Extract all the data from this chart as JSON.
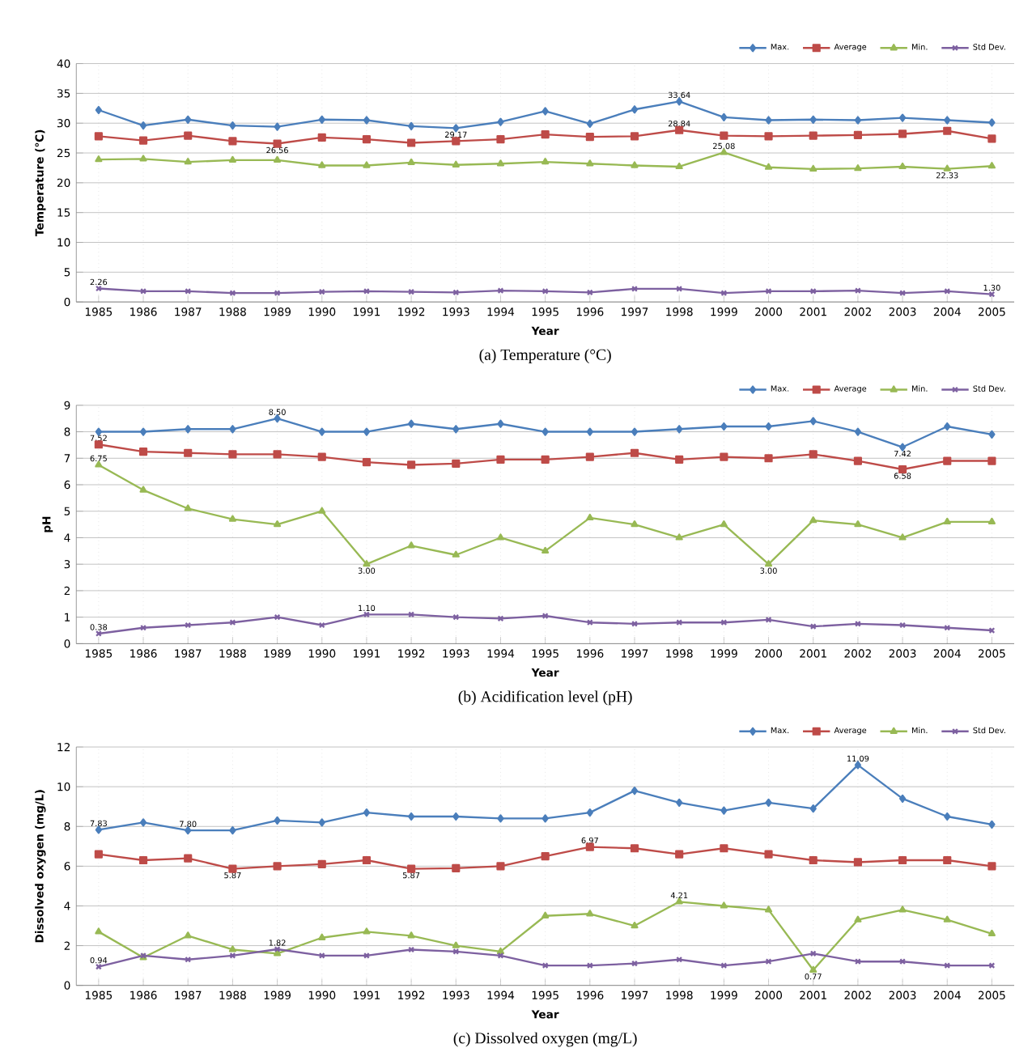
{
  "chart_data": [
    {
      "type": "line",
      "title": "(a)  Temperature  (°C)",
      "xlabel": "Year",
      "ylabel": "Temperature (℃)",
      "categories": [
        "1985",
        "1986",
        "1987",
        "1988",
        "1989",
        "1990",
        "1991",
        "1992",
        "1993",
        "1994",
        "1995",
        "1996",
        "1997",
        "1998",
        "1999",
        "2000",
        "2001",
        "2002",
        "2003",
        "2004",
        "2005"
      ],
      "ylim": [
        0,
        40
      ],
      "yticks": [
        0,
        5,
        10,
        15,
        20,
        25,
        30,
        35,
        40
      ],
      "grid": true,
      "legend": "top right",
      "line_style": "solid",
      "series": [
        {
          "name": "Max.",
          "color": "#4a7ebb",
          "marker": "diamond",
          "values": [
            32.2,
            29.6,
            30.6,
            29.6,
            29.4,
            30.6,
            30.5,
            29.5,
            29.17,
            30.2,
            32.0,
            29.9,
            32.3,
            33.64,
            31.0,
            30.5,
            30.6,
            30.5,
            30.9,
            30.5,
            30.1
          ],
          "value_labels": [
            null,
            null,
            null,
            null,
            null,
            null,
            null,
            null,
            "29.17",
            null,
            null,
            null,
            null,
            "33.64",
            null,
            null,
            null,
            null,
            null,
            null,
            null
          ]
        },
        {
          "name": "Average",
          "color": "#be4b48",
          "marker": "square",
          "values": [
            27.8,
            27.1,
            27.9,
            27.0,
            26.56,
            27.6,
            27.3,
            26.7,
            27.0,
            27.3,
            28.1,
            27.7,
            27.8,
            28.84,
            27.9,
            27.8,
            27.9,
            28.0,
            28.2,
            28.7,
            27.4
          ],
          "value_labels": [
            null,
            null,
            null,
            null,
            "26.56",
            null,
            null,
            null,
            null,
            null,
            null,
            null,
            null,
            "28.84",
            null,
            null,
            null,
            null,
            null,
            null,
            null
          ]
        },
        {
          "name": "Min.",
          "color": "#98b954",
          "marker": "triangle",
          "values": [
            23.9,
            24.0,
            23.5,
            23.8,
            23.8,
            22.9,
            22.9,
            23.4,
            23.0,
            23.2,
            23.5,
            23.2,
            22.9,
            22.7,
            25.08,
            22.6,
            22.3,
            22.4,
            22.7,
            22.33,
            22.8
          ],
          "value_labels": [
            null,
            null,
            null,
            null,
            null,
            null,
            null,
            null,
            null,
            null,
            null,
            null,
            null,
            null,
            "25.08",
            null,
            null,
            null,
            null,
            "22.33",
            null
          ]
        },
        {
          "name": "Std Dev.",
          "color": "#7d60a0",
          "marker": "cross",
          "values": [
            2.26,
            1.8,
            1.8,
            1.5,
            1.5,
            1.7,
            1.8,
            1.7,
            1.6,
            1.9,
            1.8,
            1.6,
            2.2,
            2.2,
            1.5,
            1.8,
            1.8,
            1.9,
            1.5,
            1.8,
            1.3
          ],
          "value_labels": [
            "2.26",
            null,
            null,
            null,
            null,
            null,
            null,
            null,
            null,
            null,
            null,
            null,
            null,
            null,
            null,
            null,
            null,
            null,
            null,
            null,
            "1.30"
          ]
        }
      ]
    },
    {
      "type": "line",
      "title": "(b)  Acidification  level  (pH)",
      "xlabel": "Year",
      "ylabel": "pH",
      "categories": [
        "1985",
        "1986",
        "1987",
        "1988",
        "1989",
        "1990",
        "1991",
        "1992",
        "1993",
        "1994",
        "1995",
        "1996",
        "1997",
        "1998",
        "1999",
        "2000",
        "2001",
        "2002",
        "2003",
        "2004",
        "2005"
      ],
      "ylim": [
        0,
        9
      ],
      "yticks": [
        0,
        1,
        2,
        3,
        4,
        5,
        6,
        7,
        8,
        9
      ],
      "grid": true,
      "legend": "top right",
      "line_style": "solid",
      "series": [
        {
          "name": "Max.",
          "color": "#4a7ebb",
          "marker": "diamond",
          "values": [
            8.0,
            8.0,
            8.1,
            8.1,
            8.5,
            8.0,
            8.0,
            8.3,
            8.1,
            8.3,
            8.0,
            8.0,
            8.0,
            8.1,
            8.2,
            8.2,
            8.4,
            8.0,
            7.42,
            8.2,
            7.9
          ],
          "value_labels": [
            null,
            null,
            null,
            null,
            "8.50",
            null,
            null,
            null,
            null,
            null,
            null,
            null,
            null,
            null,
            null,
            null,
            null,
            null,
            "7.42",
            null,
            null
          ]
        },
        {
          "name": "Average",
          "color": "#be4b48",
          "marker": "square",
          "values": [
            7.52,
            7.25,
            7.2,
            7.15,
            7.15,
            7.05,
            6.85,
            6.75,
            6.8,
            6.95,
            6.95,
            7.05,
            7.2,
            6.95,
            7.05,
            7.0,
            7.15,
            6.9,
            6.58,
            6.9,
            6.9
          ],
          "value_labels": [
            "7.52",
            null,
            null,
            null,
            null,
            null,
            null,
            null,
            null,
            null,
            null,
            null,
            null,
            null,
            null,
            null,
            null,
            null,
            "6.58",
            null,
            null
          ]
        },
        {
          "name": "Min.",
          "color": "#98b954",
          "marker": "triangle",
          "values": [
            6.75,
            5.8,
            5.1,
            4.7,
            4.5,
            5.0,
            3.0,
            3.7,
            3.35,
            4.0,
            3.5,
            4.75,
            4.5,
            4.0,
            4.5,
            3.0,
            4.65,
            4.5,
            4.0,
            4.6,
            4.6
          ],
          "value_labels": [
            "6.75",
            null,
            null,
            null,
            null,
            null,
            "3.00",
            null,
            null,
            null,
            null,
            null,
            null,
            null,
            null,
            "3.00",
            null,
            null,
            null,
            null,
            null
          ]
        },
        {
          "name": "Std Dev.",
          "color": "#7d60a0",
          "marker": "cross",
          "values": [
            0.38,
            0.6,
            0.7,
            0.8,
            1.0,
            0.7,
            1.1,
            1.1,
            1.0,
            0.95,
            1.05,
            0.8,
            0.75,
            0.8,
            0.8,
            0.9,
            0.65,
            0.75,
            0.7,
            0.6,
            0.5
          ],
          "value_labels": [
            "0.38",
            null,
            null,
            null,
            null,
            null,
            "1.10",
            null,
            null,
            null,
            null,
            null,
            null,
            null,
            null,
            null,
            null,
            null,
            null,
            null,
            null
          ]
        }
      ]
    },
    {
      "type": "line",
      "title": "(c)  Dissolved  oxygen  (mg/L)",
      "xlabel": "Year",
      "ylabel": "Dissolved oxygen (mg/L)",
      "categories": [
        "1985",
        "1986",
        "1987",
        "1988",
        "1989",
        "1990",
        "1991",
        "1992",
        "1993",
        "1994",
        "1995",
        "1996",
        "1997",
        "1998",
        "1999",
        "2000",
        "2001",
        "2002",
        "2003",
        "2004",
        "2005"
      ],
      "ylim": [
        0,
        12
      ],
      "yticks": [
        0,
        2,
        4,
        6,
        8,
        10,
        12
      ],
      "grid": true,
      "legend": "top right",
      "line_style": "solid",
      "series": [
        {
          "name": "Max.",
          "color": "#4a7ebb",
          "marker": "diamond",
          "values": [
            7.83,
            8.2,
            7.8,
            7.8,
            8.3,
            8.2,
            8.7,
            8.5,
            8.5,
            8.4,
            8.4,
            8.7,
            9.8,
            9.2,
            8.8,
            9.2,
            8.9,
            11.09,
            9.4,
            8.5,
            8.1
          ],
          "value_labels": [
            "7.83",
            null,
            "7.80",
            null,
            null,
            null,
            null,
            null,
            null,
            null,
            null,
            null,
            null,
            null,
            null,
            null,
            null,
            "11.09",
            null,
            null,
            null
          ]
        },
        {
          "name": "Average",
          "color": "#be4b48",
          "marker": "square",
          "values": [
            6.6,
            6.3,
            6.4,
            5.87,
            6.0,
            6.1,
            6.3,
            5.87,
            5.9,
            6.0,
            6.5,
            6.97,
            6.9,
            6.6,
            6.9,
            6.6,
            6.3,
            6.2,
            6.3,
            6.3,
            6.0
          ],
          "value_labels": [
            null,
            null,
            null,
            "5.87",
            null,
            null,
            null,
            "5.87",
            null,
            null,
            null,
            "6.97",
            null,
            null,
            null,
            null,
            null,
            null,
            null,
            null,
            null
          ]
        },
        {
          "name": "Min.",
          "color": "#98b954",
          "marker": "triangle",
          "values": [
            2.7,
            1.4,
            2.5,
            1.8,
            1.6,
            2.4,
            2.7,
            2.5,
            2.0,
            1.7,
            3.5,
            3.6,
            3.0,
            4.21,
            4.0,
            3.8,
            0.77,
            3.3,
            3.8,
            3.3,
            2.6
          ],
          "value_labels": [
            null,
            null,
            null,
            null,
            null,
            null,
            null,
            null,
            null,
            null,
            null,
            null,
            null,
            "4.21",
            null,
            null,
            "0.77",
            null,
            null,
            null,
            null
          ]
        },
        {
          "name": "Std Dev.",
          "color": "#7d60a0",
          "marker": "cross",
          "values": [
            0.94,
            1.5,
            1.3,
            1.5,
            1.82,
            1.5,
            1.5,
            1.8,
            1.7,
            1.5,
            1.0,
            1.0,
            1.1,
            1.3,
            1.0,
            1.2,
            1.6,
            1.2,
            1.2,
            1.0,
            1.0
          ],
          "value_labels": [
            "0.94",
            null,
            null,
            null,
            "1.82",
            null,
            null,
            null,
            null,
            null,
            null,
            null,
            null,
            null,
            null,
            null,
            null,
            null,
            null,
            null,
            null
          ]
        }
      ]
    }
  ]
}
